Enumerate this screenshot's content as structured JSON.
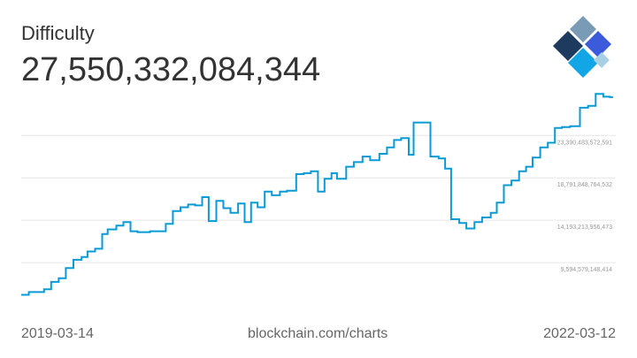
{
  "header": {
    "title": "Difficulty",
    "current_value": "27,550,332,084,344"
  },
  "logo": {
    "icon": "blockchain-logo-icon",
    "colors": [
      "#1e3a5f",
      "#7a9bb5",
      "#3b5bdb",
      "#12a6e6",
      "#a9cfe5"
    ]
  },
  "footer": {
    "start_date": "2019-03-14",
    "source": "blockchain.com/charts",
    "end_date": "2022-03-12"
  },
  "colors": {
    "line": "#0a9ad6",
    "grid": "#e6e6e6",
    "tick_label": "#999999",
    "text": "#333333",
    "footer_text": "#666666"
  },
  "chart_data": {
    "type": "line",
    "title": "Difficulty",
    "xlabel": "",
    "ylabel": "",
    "x_range": [
      "2019-03-14",
      "2022-03-12"
    ],
    "grid": true,
    "legend": "none",
    "y_ticks": [
      {
        "value": 23390483572591,
        "label": "23,390,483,572,591"
      },
      {
        "value": 18791848764532,
        "label": "18,791,848,764,532"
      },
      {
        "value": 14193213956473,
        "label": "14,193,213,956,473"
      },
      {
        "value": 9594579148414,
        "label": "9,594,579,148,414"
      }
    ],
    "ylim": [
      5000000000000,
      28500000000000
    ],
    "series": [
      {
        "name": "",
        "points": [
          [
            "2019-03-14",
            6100000000000.0
          ],
          [
            "2019-03-28",
            6400000000000.0
          ],
          [
            "2019-04-25",
            6700000000000.0
          ],
          [
            "2019-05-08",
            7500000000000.0
          ],
          [
            "2019-05-22",
            7900000000000.0
          ],
          [
            "2019-06-04",
            9000000000000.0
          ],
          [
            "2019-06-18",
            9900000000000.0
          ],
          [
            "2019-07-03",
            10200000000000.0
          ],
          [
            "2019-07-14",
            10800000000000.0
          ],
          [
            "2019-07-28",
            11100000000000.0
          ],
          [
            "2019-08-10",
            12700000000000.0
          ],
          [
            "2019-08-20",
            13200000000000.0
          ],
          [
            "2019-09-05",
            13600000000000.0
          ],
          [
            "2019-09-18",
            14000000000000.0
          ],
          [
            "2019-10-01",
            13000000000000.0
          ],
          [
            "2019-10-14",
            12900000000000.0
          ],
          [
            "2019-10-26",
            12900000000000.0
          ],
          [
            "2019-11-06",
            13000000000000.0
          ],
          [
            "2019-11-20",
            13000000000000.0
          ],
          [
            "2019-12-05",
            13800000000000.0
          ],
          [
            "2019-12-18",
            15200000000000.0
          ],
          [
            "2020-01-01",
            15600000000000.0
          ],
          [
            "2020-01-15",
            15900000000000.0
          ],
          [
            "2020-01-28",
            15800000000000.0
          ],
          [
            "2020-02-10",
            16700000000000.0
          ],
          [
            "2020-02-22",
            14100000000000.0
          ],
          [
            "2020-03-07",
            16300000000000.0
          ],
          [
            "2020-03-20",
            15500000000000.0
          ],
          [
            "2020-04-02",
            15000000000000.0
          ],
          [
            "2020-04-16",
            16000000000000.0
          ],
          [
            "2020-04-28",
            14000000000000.0
          ],
          [
            "2020-05-10",
            16100000000000.0
          ],
          [
            "2020-05-22",
            15600000000000.0
          ],
          [
            "2020-06-04",
            17300000000000.0
          ],
          [
            "2020-06-17",
            16900000000000.0
          ],
          [
            "2020-07-02",
            17300000000000.0
          ],
          [
            "2020-07-15",
            17400000000000.0
          ],
          [
            "2020-08-01",
            19200000000000.0
          ],
          [
            "2020-08-15",
            19300000000000.0
          ],
          [
            "2020-08-28",
            19500000000000.0
          ],
          [
            "2020-09-10",
            17300000000000.0
          ],
          [
            "2020-09-22",
            18700000000000.0
          ],
          [
            "2020-10-05",
            19300000000000.0
          ],
          [
            "2020-10-15",
            18700000000000.0
          ],
          [
            "2020-11-01",
            20000000000000.0
          ],
          [
            "2020-11-15",
            20500000000000.0
          ],
          [
            "2020-12-01",
            21100000000000.0
          ],
          [
            "2020-12-15",
            20700000000000.0
          ],
          [
            "2021-01-01",
            21400000000000.0
          ],
          [
            "2021-01-15",
            22100000000000.0
          ],
          [
            "2021-01-28",
            22900000000000.0
          ],
          [
            "2021-02-10",
            23100000000000.0
          ],
          [
            "2021-02-24",
            21300000000000.0
          ],
          [
            "2021-03-05",
            24800000000000.0
          ],
          [
            "2021-03-22",
            24800000000000.0
          ],
          [
            "2021-04-05",
            21100000000000.0
          ],
          [
            "2021-04-20",
            20900000000000.0
          ],
          [
            "2021-05-02",
            19800000000000.0
          ],
          [
            "2021-05-13",
            14300000000000.0
          ],
          [
            "2021-05-28",
            13900000000000.0
          ],
          [
            "2021-06-10",
            13300000000000.0
          ],
          [
            "2021-06-25",
            14000000000000.0
          ],
          [
            "2021-07-09",
            14500000000000.0
          ],
          [
            "2021-07-25",
            15000000000000.0
          ],
          [
            "2021-08-05",
            16100000000000.0
          ],
          [
            "2021-08-18",
            18000000000000.0
          ],
          [
            "2021-09-01",
            18500000000000.0
          ],
          [
            "2021-09-15",
            19500000000000.0
          ],
          [
            "2021-09-28",
            20000000000000.0
          ],
          [
            "2021-10-10",
            21000000000000.0
          ],
          [
            "2021-10-24",
            22100000000000.0
          ],
          [
            "2021-11-07",
            22600000000000.0
          ],
          [
            "2021-11-20",
            24200000000000.0
          ],
          [
            "2021-12-03",
            24300000000000.0
          ],
          [
            "2021-12-18",
            24400000000000.0
          ],
          [
            "2022-01-05",
            26400000000000.0
          ],
          [
            "2022-01-20",
            26600000000000.0
          ],
          [
            "2022-02-03",
            27900000000000.0
          ],
          [
            "2022-02-17",
            27600000000000.0
          ],
          [
            "2022-03-01",
            27550000000000.0
          ],
          [
            "2022-03-07",
            27550000000000.0
          ]
        ]
      }
    ]
  }
}
